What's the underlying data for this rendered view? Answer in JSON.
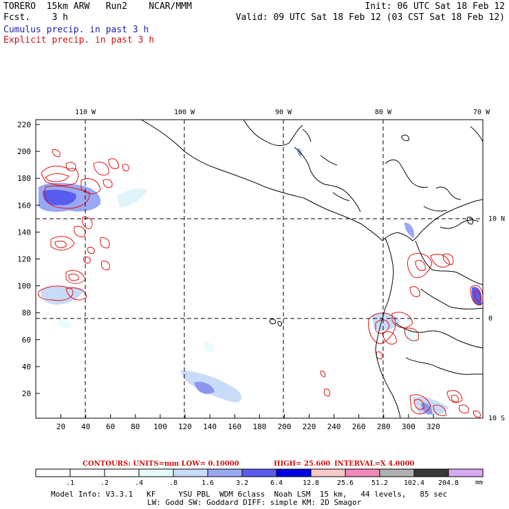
{
  "header": {
    "left_line1": "TORERO  15km ARW   Run2    NCAR/MMM",
    "left_line2": "Fcst.    3 h",
    "right_line1": "Init: 06 UTC Sat 18 Feb 12",
    "right_line2": "Valid: 09 UTC Sat 18 Feb 12 (03 CST Sat 18 Feb 12)",
    "legend_cumulus": "Cumulus precip. in past 3 h",
    "legend_explicit": "Explicit precip. in past 3 h",
    "legend_cumulus_color": "#1f1fa8",
    "legend_explicit_color": "#d01010"
  },
  "map": {
    "top_lon_labels": [
      "110 W",
      "100 W",
      "90 W",
      "80 W",
      "70 W"
    ],
    "right_lat_labels": [
      "10 N",
      "0",
      "10 S"
    ],
    "y_ticks": [
      "220",
      "200",
      "180",
      "160",
      "140",
      "120",
      "100",
      "80",
      "60",
      "40",
      "20"
    ],
    "x_ticks": [
      "20",
      "40",
      "60",
      "80",
      "100",
      "120",
      "140",
      "160",
      "180",
      "200",
      "220",
      "240",
      "260",
      "280",
      "300",
      "320"
    ]
  },
  "contours_line": {
    "prefix": "CONTOURS:  UNITS=mm  LOW= 0.10000",
    "high": "HIGH=  25.600",
    "interval": "INTERVAL=X  4.0000"
  },
  "colorbar": {
    "labels": [
      ".1",
      ".2",
      ".4",
      ".8",
      "1.6",
      "3.2",
      "6.4",
      "12.8",
      "25.6",
      "51.2",
      "102.4",
      "204.8"
    ],
    "unit": "mm",
    "colors": [
      "#ffffff",
      "#ffffff",
      "#ffffff",
      "#e8fcfc",
      "#c8dcf8",
      "#9aa8f4",
      "#5a5cf0",
      "#0000e8",
      "#f8c8c8",
      "#f088b8",
      "#b0b0b0",
      "#383838",
      "#d8a8f4"
    ]
  },
  "footer": {
    "line1": "Model Info: V3.3.1   KF     YSU PBL  WDM 6class  Noah LSM  15 km,   44 levels,   85 sec",
    "line2": "LW: Godd SW: Goddard DIFF: simple KM: 2D Smagor"
  }
}
